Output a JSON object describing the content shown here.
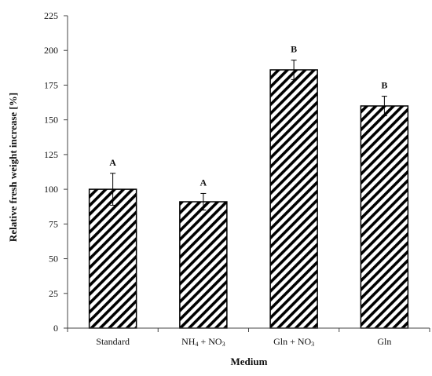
{
  "chart_data": {
    "type": "bar",
    "title": "",
    "xlabel": "Medium",
    "ylabel": "Relative fresh weight increase [%]",
    "ylim": [
      0,
      225
    ],
    "yticks": [
      0,
      25,
      50,
      75,
      100,
      125,
      150,
      175,
      200,
      225
    ],
    "grid": false,
    "legend": "none",
    "categories": [
      "Standard",
      "NH4 + NO3",
      "Gln + NO3",
      "Gln"
    ],
    "category_labels": [
      [
        {
          "t": "Standard"
        }
      ],
      [
        {
          "t": "NH"
        },
        {
          "t": "4",
          "sub": true
        },
        {
          "t": " + NO"
        },
        {
          "t": "3",
          "sub": true
        }
      ],
      [
        {
          "t": "Gln + NO"
        },
        {
          "t": "3",
          "sub": true
        }
      ],
      [
        {
          "t": "Gln"
        }
      ]
    ],
    "values": [
      100,
      91,
      186,
      160
    ],
    "errors": [
      11.5,
      6,
      7,
      7
    ],
    "significance": [
      "A",
      "A",
      "B",
      "B"
    ],
    "bar_fill": "diagonal-hatch",
    "colors": {
      "bar_stroke": "#000000",
      "hatch": "#000000",
      "axis": "#444444",
      "background": "#ffffff"
    }
  }
}
